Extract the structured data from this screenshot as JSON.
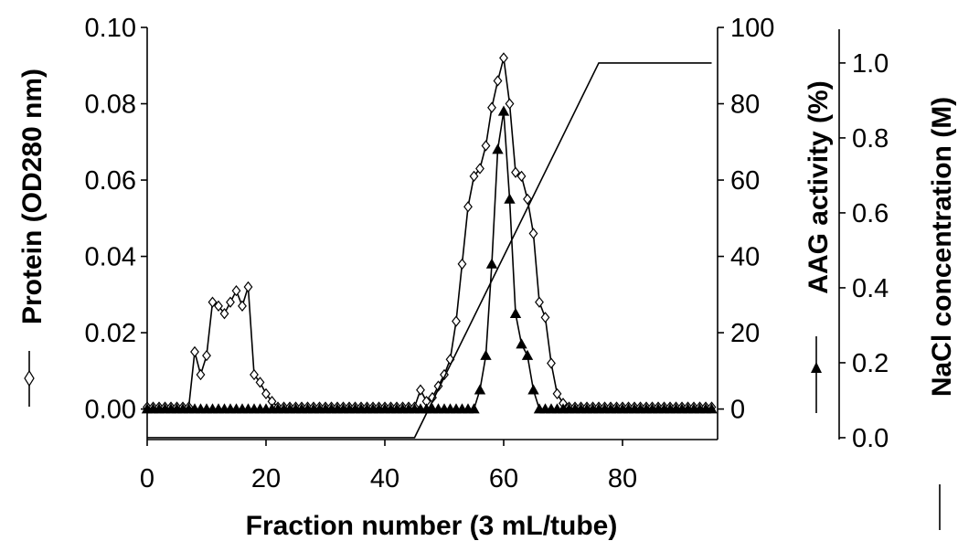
{
  "chart_data": {
    "type": "line",
    "title": "",
    "xlabel": "Fraction number (3 mL/tube)",
    "xlim": [
      0,
      96
    ],
    "xticks": [
      "0",
      "20",
      "40",
      "60",
      "80"
    ],
    "grid": false,
    "axes": {
      "left": {
        "label": "Protein (OD280 nm)",
        "ylim": [
          -0.008,
          0.1
        ],
        "ticks": [
          "0.00",
          "0.02",
          "0.04",
          "0.06",
          "0.08",
          "0.10"
        ]
      },
      "right1": {
        "label": "AAG activity (%)",
        "ylim": [
          -8,
          100
        ],
        "ticks": [
          "0",
          "20",
          "40",
          "60",
          "80",
          "100"
        ]
      },
      "right2": {
        "label": "NaCl concentration (M)",
        "ylim": [
          -0.005,
          1.09
        ],
        "ticks": [
          "0.0",
          "0.2",
          "0.4",
          "0.6",
          "0.8",
          "1.0"
        ]
      }
    },
    "series": [
      {
        "name": "Protein (OD280 nm)",
        "axis": "left",
        "marker": "open-diamond",
        "color": "#000000",
        "x": [
          0,
          1,
          2,
          3,
          4,
          5,
          6,
          7,
          8,
          9,
          10,
          11,
          12,
          13,
          14,
          15,
          16,
          17,
          18,
          19,
          20,
          21,
          22,
          23,
          24,
          25,
          26,
          27,
          28,
          29,
          30,
          31,
          32,
          33,
          34,
          35,
          36,
          37,
          38,
          39,
          40,
          41,
          42,
          43,
          44,
          45,
          46,
          47,
          48,
          49,
          50,
          51,
          52,
          53,
          54,
          55,
          56,
          57,
          58,
          59,
          60,
          61,
          62,
          63,
          64,
          65,
          66,
          67,
          68,
          69,
          70,
          71,
          72,
          73,
          74,
          75,
          76,
          77,
          78,
          79,
          80,
          81,
          82,
          83,
          84,
          85,
          86,
          87,
          88,
          89,
          90,
          91,
          92,
          93,
          94,
          95
        ],
        "y": [
          0.0005,
          0.0005,
          0.0005,
          0.0005,
          0.0005,
          0.0005,
          0.0005,
          0.0005,
          0.015,
          0.009,
          0.014,
          0.028,
          0.027,
          0.025,
          0.028,
          0.031,
          0.027,
          0.032,
          0.009,
          0.007,
          0.004,
          0.002,
          0.0005,
          0.0005,
          0.0005,
          0.0005,
          0.0005,
          0.0005,
          0.0005,
          0.0005,
          0.0005,
          0.0005,
          0.0005,
          0.0005,
          0.0005,
          0.0005,
          0.0005,
          0.0005,
          0.0005,
          0.0005,
          0.0005,
          0.0005,
          0.0005,
          0.0005,
          0.0005,
          0.0005,
          0.005,
          0.002,
          0.003,
          0.006,
          0.009,
          0.013,
          0.023,
          0.038,
          0.053,
          0.061,
          0.063,
          0.069,
          0.079,
          0.086,
          0.092,
          0.08,
          0.062,
          0.061,
          0.055,
          0.046,
          0.028,
          0.024,
          0.012,
          0.004,
          0.0015,
          0.0005,
          0.0005,
          0.0005,
          0.0005,
          0.0005,
          0.0005,
          0.0005,
          0.0005,
          0.0005,
          0.0005,
          0.0005,
          0.0005,
          0.0005,
          0.0005,
          0.0005,
          0.0005,
          0.0005,
          0.0005,
          0.0005,
          0.0005,
          0.0005,
          0.0005,
          0.0005,
          0.0005,
          0.0005
        ]
      },
      {
        "name": "AAG activity (%)",
        "axis": "right1",
        "marker": "filled-triangle",
        "color": "#000000",
        "x": [
          0,
          1,
          2,
          3,
          4,
          5,
          6,
          7,
          8,
          9,
          10,
          11,
          12,
          13,
          14,
          15,
          16,
          17,
          18,
          19,
          20,
          21,
          22,
          23,
          24,
          25,
          26,
          27,
          28,
          29,
          30,
          31,
          32,
          33,
          34,
          35,
          36,
          37,
          38,
          39,
          40,
          41,
          42,
          43,
          44,
          45,
          46,
          47,
          48,
          49,
          50,
          51,
          52,
          53,
          54,
          55,
          56,
          57,
          58,
          59,
          60,
          61,
          62,
          63,
          64,
          65,
          66,
          67,
          68,
          69,
          70,
          71,
          72,
          73,
          74,
          75,
          76,
          77,
          78,
          79,
          80,
          81,
          82,
          83,
          84,
          85,
          86,
          87,
          88,
          89,
          90,
          91,
          92,
          93,
          94,
          95
        ],
        "y": [
          0,
          0,
          0,
          0,
          0,
          0,
          0,
          0,
          0,
          0,
          0,
          0,
          0,
          0,
          0,
          0,
          0,
          0,
          0,
          0,
          0,
          0,
          0,
          0,
          0,
          0,
          0,
          0,
          0,
          0,
          0,
          0,
          0,
          0,
          0,
          0,
          0,
          0,
          0,
          0,
          0,
          0,
          0,
          0,
          0,
          0,
          0,
          0,
          0,
          0,
          0,
          0,
          0,
          0,
          0,
          0,
          5,
          14,
          38,
          68,
          78,
          55,
          25,
          17,
          14,
          5,
          0,
          0,
          0,
          0,
          0,
          0,
          0,
          0,
          0,
          0,
          0,
          0,
          0,
          0,
          0,
          0,
          0,
          0,
          0,
          0,
          0,
          0,
          0,
          0,
          0,
          0,
          0,
          0,
          0,
          0
        ]
      },
      {
        "name": "NaCl concentration (M)",
        "axis": "right2",
        "marker": "none",
        "color": "#000000",
        "x": [
          0,
          45,
          76,
          95
        ],
        "y": [
          0,
          0,
          1.0,
          1.0
        ]
      }
    ]
  }
}
